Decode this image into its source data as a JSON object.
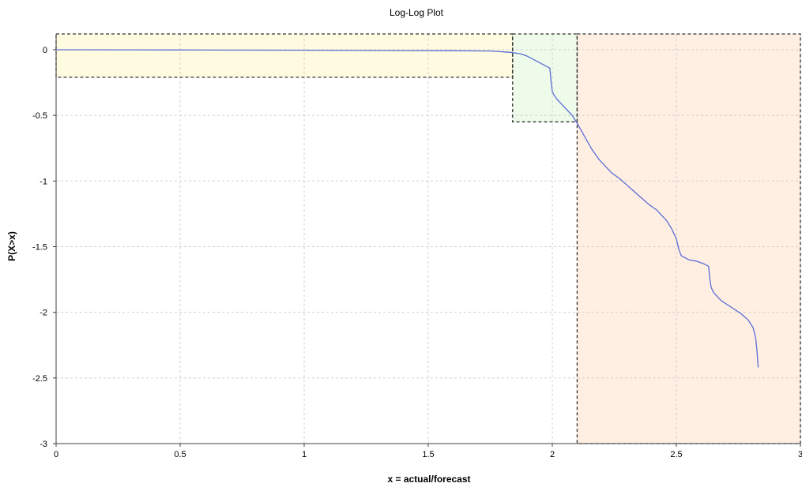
{
  "chart_data": {
    "type": "line",
    "title": "Log-Log Plot",
    "xlabel": "x = actual/forecast",
    "ylabel": "P(X>x)",
    "xlim": [
      0,
      3
    ],
    "ylim": [
      -3,
      0.12
    ],
    "x_ticks": [
      0,
      0.5,
      1,
      1.5,
      2,
      2.5,
      3
    ],
    "x_tick_labels": [
      "0",
      "0.5",
      "1",
      "1.5",
      "2",
      "2.5",
      "3"
    ],
    "y_ticks": [
      0,
      -0.5,
      -1,
      -1.5,
      -2,
      -2.5,
      -3
    ],
    "y_tick_labels": [
      "0",
      "-0.5",
      "-1",
      "-1.5",
      "-2",
      "-2.5",
      "-3"
    ],
    "grid": true,
    "line_color": "#5a6ed6",
    "series": [
      {
        "x": [
          0,
          0.5,
          1,
          1.3,
          1.6,
          1.75,
          1.83,
          1.87,
          1.9,
          1.93,
          1.96,
          1.99,
          1.995,
          2.0,
          2.005,
          2.02,
          2.04,
          2.06,
          2.08,
          2.1,
          2.13,
          2.16,
          2.19,
          2.21,
          2.24,
          2.27,
          2.3,
          2.33,
          2.36,
          2.39,
          2.42,
          2.43,
          2.46,
          2.48,
          2.5,
          2.51,
          2.52,
          2.55,
          2.58,
          2.61,
          2.63,
          2.635,
          2.64,
          2.65,
          2.68,
          2.72,
          2.76,
          2.79,
          2.81,
          2.82,
          2.825,
          2.83
        ],
        "y": [
          0,
          -0.002,
          -0.004,
          -0.006,
          -0.008,
          -0.01,
          -0.02,
          -0.03,
          -0.05,
          -0.08,
          -0.11,
          -0.14,
          -0.24,
          -0.32,
          -0.34,
          -0.38,
          -0.42,
          -0.46,
          -0.5,
          -0.56,
          -0.66,
          -0.76,
          -0.84,
          -0.88,
          -0.94,
          -0.98,
          -1.03,
          -1.08,
          -1.13,
          -1.18,
          -1.22,
          -1.24,
          -1.3,
          -1.36,
          -1.44,
          -1.52,
          -1.57,
          -1.6,
          -1.61,
          -1.63,
          -1.65,
          -1.75,
          -1.81,
          -1.85,
          -1.91,
          -1.96,
          -2.01,
          -2.06,
          -2.12,
          -2.2,
          -2.3,
          -2.42
        ]
      }
    ],
    "regions": [
      {
        "x0": 0,
        "x1": 1.84,
        "y0": -0.21,
        "y1": 0.12,
        "fill": "#fffbe0"
      },
      {
        "x0": 1.84,
        "x1": 2.1,
        "y0": -0.55,
        "y1": 0.12,
        "fill": "#eefbea"
      },
      {
        "x0": 2.1,
        "x1": 3,
        "y0": -3,
        "y1": 0.12,
        "fill": "#ffeee2"
      }
    ]
  }
}
